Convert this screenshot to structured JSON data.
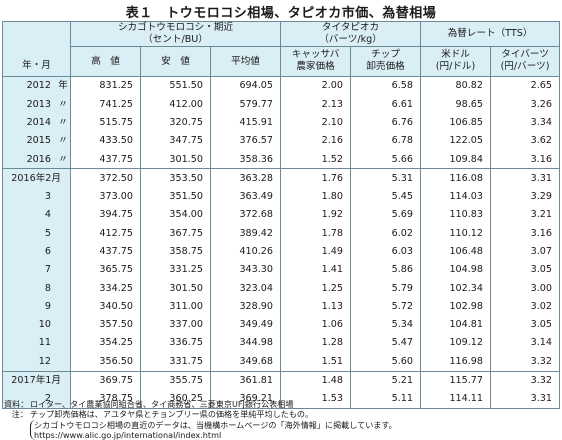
{
  "title": "表１　トウモロコシ相場、タピオカ市価、為替相場",
  "header": {
    "year_month": "年・月",
    "corn_group": "シカゴトウモロコシ・期近",
    "corn_unit": "（セント/BU）",
    "corn_high": "高　値",
    "corn_low": "安　値",
    "corn_avg": "平均値",
    "tapioca_group": "タイタピオカ",
    "tapioca_unit": "（バーツ/kg）",
    "tapioca_farm_1": "キャッサバ",
    "tapioca_farm_2": "農家価格",
    "tapioca_chip_1": "チップ",
    "tapioca_chip_2": "卸売価格",
    "fx_group": "為替レート（TTS）",
    "fx_usd_1": "米ドル",
    "fx_usd_2": "(円/ドル)",
    "fx_thb_1": "タイバーツ",
    "fx_thb_2": "(円/バーツ)"
  },
  "rows": [
    {
      "y": "2012",
      "m": "年",
      "v": [
        "831.25",
        "551.50",
        "694.05",
        "2.00",
        "6.58",
        "80.82",
        "2.65"
      ]
    },
    {
      "y": "2013",
      "m": "〃",
      "v": [
        "741.25",
        "412.00",
        "579.77",
        "2.13",
        "6.61",
        "98.65",
        "3.26"
      ]
    },
    {
      "y": "2014",
      "m": "〃",
      "v": [
        "515.75",
        "320.75",
        "415.91",
        "2.10",
        "6.76",
        "106.85",
        "3.34"
      ]
    },
    {
      "y": "2015",
      "m": "〃",
      "v": [
        "433.50",
        "347.75",
        "376.57",
        "2.16",
        "6.78",
        "122.05",
        "3.62"
      ]
    },
    {
      "y": "2016",
      "m": "〃",
      "v": [
        "437.75",
        "301.50",
        "358.36",
        "1.52",
        "5.66",
        "109.84",
        "3.16"
      ]
    },
    {
      "y": "2016年2月",
      "m": "",
      "v": [
        "372.50",
        "353.50",
        "363.28",
        "1.76",
        "5.31",
        "116.08",
        "3.31"
      ]
    },
    {
      "y": "3",
      "m": "",
      "v": [
        "373.00",
        "351.50",
        "363.49",
        "1.80",
        "5.45",
        "114.03",
        "3.29"
      ]
    },
    {
      "y": "4",
      "m": "",
      "v": [
        "394.75",
        "354.00",
        "372.68",
        "1.92",
        "5.69",
        "110.83",
        "3.21"
      ]
    },
    {
      "y": "5",
      "m": "",
      "v": [
        "412.75",
        "367.75",
        "389.42",
        "1.78",
        "6.02",
        "110.12",
        "3.16"
      ]
    },
    {
      "y": "6",
      "m": "",
      "v": [
        "437.75",
        "358.75",
        "410.26",
        "1.49",
        "6.03",
        "106.48",
        "3.07"
      ]
    },
    {
      "y": "7",
      "m": "",
      "v": [
        "365.75",
        "331.25",
        "343.30",
        "1.41",
        "5.86",
        "104.98",
        "3.05"
      ]
    },
    {
      "y": "8",
      "m": "",
      "v": [
        "334.25",
        "301.50",
        "323.04",
        "1.25",
        "5.79",
        "102.34",
        "3.00"
      ]
    },
    {
      "y": "9",
      "m": "",
      "v": [
        "340.50",
        "311.00",
        "328.90",
        "1.13",
        "5.72",
        "102.98",
        "3.02"
      ]
    },
    {
      "y": "10",
      "m": "",
      "v": [
        "357.50",
        "337.00",
        "349.49",
        "1.06",
        "5.34",
        "104.81",
        "3.05"
      ]
    },
    {
      "y": "11",
      "m": "",
      "v": [
        "354.25",
        "336.75",
        "344.98",
        "1.28",
        "5.47",
        "109.12",
        "3.14"
      ]
    },
    {
      "y": "12",
      "m": "",
      "v": [
        "356.50",
        "331.75",
        "349.68",
        "1.51",
        "5.60",
        "116.98",
        "3.32"
      ]
    },
    {
      "y": "2017年1月",
      "m": "",
      "v": [
        "369.75",
        "355.75",
        "361.81",
        "1.48",
        "5.21",
        "115.77",
        "3.32"
      ]
    },
    {
      "y": "2",
      "m": "",
      "v": [
        "378.75",
        "360.25",
        "369.21",
        "1.53",
        "5.11",
        "114.11",
        "3.31"
      ]
    }
  ],
  "notes": {
    "source_label": "資料：",
    "source_text": "ロイター、タイ農業協同組合省、タイ商務省、三菱東京UFJ銀行公表相場",
    "note_label": "注：",
    "note_text": "チップ卸売価格は、アユタヤ県とチョンブリー県の価格を単純平均したもの。",
    "paren_text": "シカゴトウモロコシ相場の直近のデータは、当機構ホームページの「海外情報」に掲載しています。",
    "url": "https://www.alic.go.jp/international/index.html"
  }
}
